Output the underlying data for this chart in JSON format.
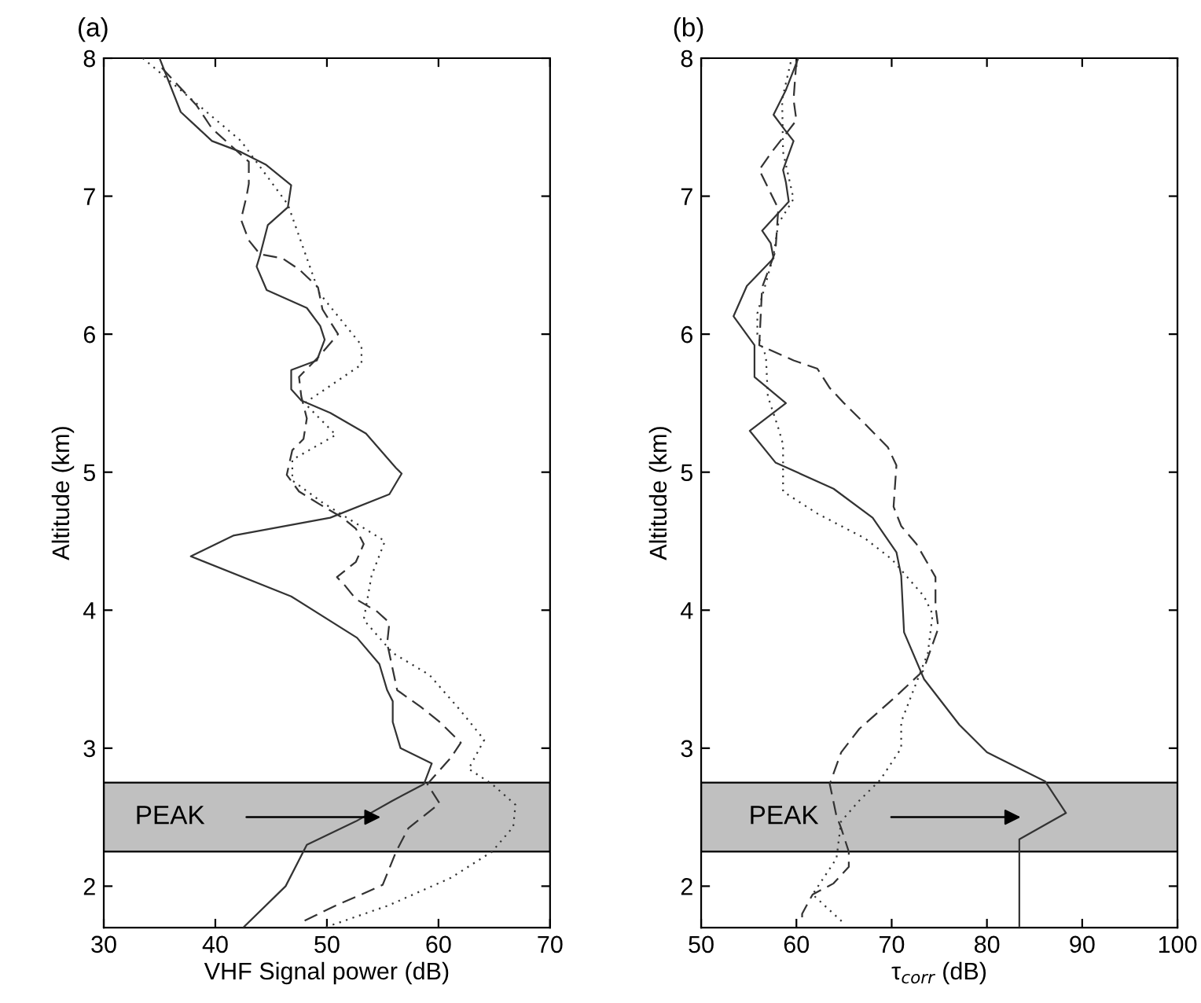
{
  "chart_data": [
    {
      "type": "line",
      "title": "(a)",
      "xlabel": "VHF Signal power (dB)",
      "ylabel": "Altitude (km)",
      "xlim": [
        30,
        70
      ],
      "xticks": [
        30,
        40,
        50,
        60,
        70
      ],
      "ylim": [
        1.7,
        8
      ],
      "yticks": [
        2,
        3,
        4,
        5,
        6,
        7,
        8
      ],
      "grid": false,
      "bands": [
        {
          "axis": "y",
          "from": 2.25,
          "to": 2.75,
          "color": "#c0c0c0"
        }
      ],
      "annotations": [
        "PEAK"
      ],
      "series": [
        {
          "color": "#333333",
          "line_style": "solid",
          "x": [
            35.0,
            36.9,
            39.7,
            42.3,
            44.5,
            46.8,
            46.5,
            44.7,
            44.0,
            43.7,
            44.6,
            48.2,
            49.4,
            49.8,
            49.1,
            46.8,
            46.8,
            47.7,
            50.3,
            53.5,
            56.2,
            56.7,
            55.6,
            50.3,
            41.6,
            37.8,
            46.8,
            52.7,
            54.7,
            55.4,
            55.9,
            55.9,
            56.6,
            59.4,
            58.7,
            55.9,
            52.6,
            48.2,
            46.3,
            42.5
          ],
          "values": [
            8.0,
            7.61,
            7.4,
            7.32,
            7.23,
            7.08,
            6.92,
            6.79,
            6.57,
            6.49,
            6.32,
            6.19,
            6.06,
            5.96,
            5.81,
            5.74,
            5.6,
            5.52,
            5.43,
            5.28,
            5.03,
            4.99,
            4.84,
            4.67,
            4.54,
            4.39,
            4.1,
            3.8,
            3.61,
            3.42,
            3.34,
            3.19,
            3.0,
            2.89,
            2.74,
            2.62,
            2.47,
            2.3,
            2.0,
            1.7
          ]
        },
        {
          "color": "#333333",
          "line_style": "dashed",
          "x": [
            35.2,
            38.3,
            39.7,
            43.0,
            43.0,
            42.8,
            42.3,
            43.0,
            44.0,
            46.0,
            47.5,
            49.2,
            49.6,
            51.0,
            49.3,
            47.5,
            47.7,
            48.2,
            47.9,
            46.9,
            46.4,
            47.5,
            49.3,
            51.4,
            52.6,
            53.3,
            52.6,
            50.9,
            51.6,
            52.6,
            54.5,
            55.6,
            55.4,
            56.3,
            58.4,
            60.1,
            62.0,
            61.1,
            59.0,
            60.1,
            58.7,
            57.3,
            56.2,
            55.0,
            53.1,
            50.8,
            48.0
          ],
          "values": [
            7.93,
            7.66,
            7.49,
            7.25,
            7.09,
            7.0,
            6.83,
            6.68,
            6.58,
            6.55,
            6.47,
            6.34,
            6.18,
            6.0,
            5.84,
            5.69,
            5.55,
            5.39,
            5.24,
            5.16,
            4.98,
            4.86,
            4.77,
            4.67,
            4.59,
            4.48,
            4.35,
            4.24,
            4.18,
            4.08,
            3.99,
            3.91,
            3.76,
            3.42,
            3.3,
            3.19,
            3.04,
            2.93,
            2.74,
            2.6,
            2.51,
            2.42,
            2.25,
            2.01,
            1.94,
            1.86,
            1.75
          ]
        },
        {
          "color": "#333333",
          "line_style": "dotted",
          "x": [
            33.5,
            42.3,
            46.5,
            49.3,
            53.1,
            53.1,
            48.0,
            50.8,
            46.9,
            46.9,
            49.6,
            52.4,
            55.2,
            54.0,
            53.3,
            55.9,
            59.2,
            62.0,
            64.1,
            62.7,
            64.8,
            66.9,
            66.7,
            64.8,
            61.1,
            55.5,
            49.8
          ],
          "values": [
            8.0,
            7.4,
            6.94,
            6.3,
            5.92,
            5.78,
            5.5,
            5.27,
            5.09,
            4.94,
            4.78,
            4.64,
            4.5,
            4.25,
            3.93,
            3.69,
            3.53,
            3.27,
            3.06,
            2.85,
            2.74,
            2.59,
            2.43,
            2.25,
            2.06,
            1.86,
            1.7
          ]
        }
      ]
    },
    {
      "type": "line",
      "title": "(b)",
      "xlabel": "τ$_{corr}$ (dB)",
      "ylabel": "Altitude (km)",
      "xlim": [
        50,
        100
      ],
      "xticks": [
        50,
        60,
        70,
        80,
        90,
        100
      ],
      "ylim": [
        1.7,
        8
      ],
      "yticks": [
        2,
        3,
        4,
        5,
        6,
        7,
        8
      ],
      "grid": false,
      "bands": [
        {
          "axis": "y",
          "from": 2.25,
          "to": 2.75,
          "color": "#c0c0c0"
        }
      ],
      "annotations": [
        "PEAK"
      ],
      "series": [
        {
          "color": "#333333",
          "line_style": "solid",
          "x": [
            60.2,
            58.9,
            57.6,
            58.9,
            59.7,
            58.6,
            58.9,
            59.2,
            56.4,
            57.3,
            57.6,
            54.8,
            53.4,
            55.6,
            55.6,
            58.9,
            55.1,
            57.8,
            63.9,
            68.0,
            70.5,
            71.0,
            71.3,
            73.4,
            77.1,
            80.0,
            86.1,
            88.3,
            83.4,
            83.4,
            83.4
          ],
          "values": [
            8.0,
            7.77,
            7.59,
            7.47,
            7.4,
            7.19,
            7.1,
            6.96,
            6.75,
            6.66,
            6.55,
            6.35,
            6.13,
            5.92,
            5.69,
            5.5,
            5.3,
            5.07,
            4.88,
            4.67,
            4.42,
            4.25,
            3.84,
            3.5,
            3.17,
            2.97,
            2.76,
            2.53,
            2.34,
            2.25,
            1.7
          ]
        },
        {
          "color": "#333333",
          "line_style": "dashed",
          "x": [
            60.0,
            59.7,
            60.0,
            57.3,
            56.1,
            58.1,
            57.8,
            56.4,
            56.1,
            59.7,
            62.2,
            63.5,
            65.0,
            67.2,
            69.6,
            70.5,
            70.2,
            71.0,
            72.6,
            74.6,
            74.6,
            74.9,
            73.3,
            70.2,
            66.6,
            64.7,
            63.5,
            64.2,
            64.7,
            65.5,
            65.5,
            63.9,
            61.7,
            60.6,
            60.6
          ],
          "values": [
            7.98,
            7.7,
            7.55,
            7.31,
            7.19,
            6.91,
            6.6,
            6.34,
            5.92,
            5.81,
            5.75,
            5.61,
            5.5,
            5.35,
            5.18,
            5.05,
            4.75,
            4.61,
            4.48,
            4.24,
            4.03,
            3.87,
            3.56,
            3.36,
            3.14,
            2.97,
            2.74,
            2.51,
            2.42,
            2.25,
            2.14,
            2.02,
            1.94,
            1.8,
            1.73
          ]
        },
        {
          "color": "#333333",
          "line_style": "dotted",
          "x": [
            59.4,
            58.5,
            58.6,
            59.7,
            58.1,
            57.6,
            55.9,
            55.9,
            56.8,
            57.0,
            58.1,
            58.6,
            58.6,
            62.2,
            67.2,
            70.0,
            73.4,
            74.3,
            73.8,
            71.0,
            71.0,
            68.8,
            66.6,
            64.7,
            64.2,
            61.7,
            65.0
          ],
          "values": [
            7.97,
            7.7,
            7.32,
            6.98,
            6.8,
            6.57,
            6.15,
            6.0,
            5.84,
            5.55,
            5.32,
            5.2,
            4.86,
            4.7,
            4.52,
            4.37,
            4.1,
            3.97,
            3.69,
            3.19,
            3.0,
            2.77,
            2.62,
            2.47,
            2.2,
            1.94,
            1.73
          ]
        }
      ]
    }
  ]
}
